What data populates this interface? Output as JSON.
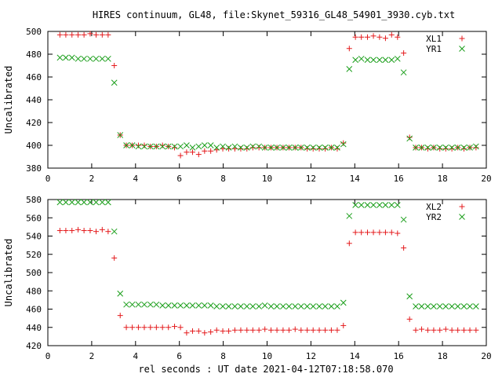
{
  "figure": {
    "title": "HIRES continuum, GL48, file:Skynet_59316_GL48_54901_3930.cyb.txt",
    "xlabel": "rel seconds : UT date 2021-04-12T07:18:58.070"
  },
  "chart_data": [
    {
      "type": "scatter",
      "title": "HIRES continuum, GL48, file:Skynet_59316_GL48_54901_3930.cyb.txt",
      "xlabel": "",
      "ylabel": "Uncalibrated",
      "xlim": [
        0,
        20
      ],
      "ylim": [
        380,
        500
      ],
      "xticks": [
        0,
        2,
        4,
        6,
        8,
        10,
        12,
        14,
        16,
        18,
        20
      ],
      "yticks": [
        380,
        400,
        420,
        440,
        460,
        480,
        500
      ],
      "grid": false,
      "legend_position": "top-right",
      "series": [
        {
          "name": "XL1",
          "marker": "plus",
          "color": "#e41a1c",
          "x": [
            0.55,
            0.82,
            1.1,
            1.38,
            1.65,
            1.93,
            2.2,
            2.48,
            2.75,
            3.03,
            3.3,
            3.58,
            3.85,
            4.13,
            4.4,
            4.68,
            4.95,
            5.23,
            5.5,
            5.78,
            6.05,
            6.33,
            6.6,
            6.88,
            7.15,
            7.43,
            7.7,
            7.98,
            8.25,
            8.53,
            8.8,
            9.08,
            9.35,
            9.63,
            9.9,
            10.18,
            10.45,
            10.73,
            11.0,
            11.28,
            11.55,
            11.83,
            12.1,
            12.38,
            12.65,
            12.93,
            13.2,
            13.48,
            13.75,
            14.03,
            14.3,
            14.58,
            14.85,
            15.13,
            15.4,
            15.68,
            15.95,
            16.23,
            16.5,
            16.78,
            17.05,
            17.33,
            17.6,
            17.88,
            18.15,
            18.43,
            18.7,
            18.98,
            19.25,
            19.53
          ],
          "y": [
            497,
            497,
            497,
            497,
            497,
            498,
            497,
            497,
            497,
            470,
            409,
            400,
            400,
            400,
            400,
            399,
            399,
            400,
            399,
            398,
            391,
            394,
            394,
            392,
            395,
            395,
            396,
            397,
            397,
            397,
            397,
            397,
            398,
            398,
            398,
            398,
            398,
            398,
            398,
            398,
            398,
            397,
            397,
            397,
            397,
            398,
            397,
            402,
            485,
            495,
            495,
            495,
            496,
            495,
            494,
            497,
            495,
            481,
            407,
            398,
            398,
            397,
            398,
            397,
            397,
            397,
            398,
            397,
            398,
            398
          ]
        },
        {
          "name": "YR1",
          "marker": "cross",
          "color": "#1a9e1a",
          "x": [
            0.55,
            0.82,
            1.1,
            1.38,
            1.65,
            1.93,
            2.2,
            2.48,
            2.75,
            3.03,
            3.3,
            3.58,
            3.85,
            4.13,
            4.4,
            4.68,
            4.95,
            5.23,
            5.5,
            5.78,
            6.05,
            6.33,
            6.6,
            6.88,
            7.15,
            7.43,
            7.7,
            7.98,
            8.25,
            8.53,
            8.8,
            9.08,
            9.35,
            9.63,
            9.9,
            10.18,
            10.45,
            10.73,
            11.0,
            11.28,
            11.55,
            11.83,
            12.1,
            12.38,
            12.65,
            12.93,
            13.2,
            13.48,
            13.75,
            14.03,
            14.3,
            14.58,
            14.85,
            15.13,
            15.4,
            15.68,
            15.95,
            16.23,
            16.5,
            16.78,
            17.05,
            17.33,
            17.6,
            17.88,
            18.15,
            18.43,
            18.7,
            18.98,
            19.25,
            19.53
          ],
          "y": [
            477,
            477,
            477,
            476,
            476,
            476,
            476,
            476,
            476,
            455,
            409,
            400,
            400,
            399,
            399,
            399,
            399,
            399,
            399,
            399,
            399,
            400,
            398,
            399,
            400,
            400,
            398,
            399,
            398,
            399,
            398,
            398,
            399,
            399,
            398,
            398,
            398,
            398,
            398,
            398,
            398,
            398,
            398,
            398,
            398,
            398,
            398,
            401,
            467,
            475,
            476,
            475,
            475,
            475,
            475,
            475,
            476,
            464,
            406,
            398,
            398,
            398,
            398,
            398,
            398,
            398,
            398,
            398,
            398,
            399
          ]
        }
      ]
    },
    {
      "type": "scatter",
      "title": "",
      "xlabel": "rel seconds : UT date 2021-04-12T07:18:58.070",
      "ylabel": "Uncalibrated",
      "xlim": [
        0,
        20
      ],
      "ylim": [
        420,
        580
      ],
      "xticks": [
        0,
        2,
        4,
        6,
        8,
        10,
        12,
        14,
        16,
        18,
        20
      ],
      "yticks": [
        420,
        440,
        460,
        480,
        500,
        520,
        540,
        560,
        580
      ],
      "grid": false,
      "legend_position": "top-right",
      "series": [
        {
          "name": "XL2",
          "marker": "plus",
          "color": "#e41a1c",
          "x": [
            0.55,
            0.82,
            1.1,
            1.38,
            1.65,
            1.93,
            2.2,
            2.48,
            2.75,
            3.03,
            3.3,
            3.58,
            3.85,
            4.13,
            4.4,
            4.68,
            4.95,
            5.23,
            5.5,
            5.78,
            6.05,
            6.33,
            6.6,
            6.88,
            7.15,
            7.43,
            7.7,
            7.98,
            8.25,
            8.53,
            8.8,
            9.08,
            9.35,
            9.63,
            9.9,
            10.18,
            10.45,
            10.73,
            11.0,
            11.28,
            11.55,
            11.83,
            12.1,
            12.38,
            12.65,
            12.93,
            13.2,
            13.48,
            13.75,
            14.03,
            14.3,
            14.58,
            14.85,
            15.13,
            15.4,
            15.68,
            15.95,
            16.23,
            16.5,
            16.78,
            17.05,
            17.33,
            17.6,
            17.88,
            18.15,
            18.43,
            18.7,
            18.98,
            19.25,
            19.53
          ],
          "y": [
            546,
            546,
            546,
            547,
            546,
            546,
            545,
            547,
            545,
            516,
            453,
            440,
            440,
            440,
            440,
            440,
            440,
            440,
            440,
            441,
            440,
            434,
            436,
            436,
            434,
            435,
            437,
            436,
            436,
            437,
            437,
            437,
            437,
            437,
            438,
            437,
            437,
            437,
            437,
            438,
            437,
            437,
            437,
            437,
            437,
            437,
            437,
            442,
            532,
            544,
            544,
            544,
            544,
            544,
            544,
            544,
            543,
            527,
            449,
            437,
            438,
            437,
            437,
            437,
            438,
            437,
            437,
            437,
            437,
            437
          ]
        },
        {
          "name": "YR2",
          "marker": "cross",
          "color": "#1a9e1a",
          "x": [
            0.55,
            0.82,
            1.1,
            1.38,
            1.65,
            1.93,
            2.2,
            2.48,
            2.75,
            3.03,
            3.3,
            3.58,
            3.85,
            4.13,
            4.4,
            4.68,
            4.95,
            5.23,
            5.5,
            5.78,
            6.05,
            6.33,
            6.6,
            6.88,
            7.15,
            7.43,
            7.7,
            7.98,
            8.25,
            8.53,
            8.8,
            9.08,
            9.35,
            9.63,
            9.9,
            10.18,
            10.45,
            10.73,
            11.0,
            11.28,
            11.55,
            11.83,
            12.1,
            12.38,
            12.65,
            12.93,
            13.2,
            13.48,
            13.75,
            14.03,
            14.3,
            14.58,
            14.85,
            15.13,
            15.4,
            15.68,
            15.95,
            16.23,
            16.5,
            16.78,
            17.05,
            17.33,
            17.6,
            17.88,
            18.15,
            18.43,
            18.7,
            18.98,
            19.25,
            19.53
          ],
          "y": [
            577,
            577,
            577,
            577,
            577,
            577,
            577,
            577,
            577,
            545,
            477,
            465,
            465,
            465,
            465,
            465,
            465,
            464,
            464,
            464,
            464,
            464,
            464,
            464,
            464,
            464,
            463,
            463,
            463,
            463,
            463,
            463,
            463,
            463,
            464,
            463,
            463,
            463,
            463,
            463,
            463,
            463,
            463,
            463,
            463,
            463,
            463,
            467,
            562,
            574,
            574,
            574,
            574,
            574,
            574,
            574,
            574,
            558,
            474,
            463,
            463,
            463,
            463,
            463,
            463,
            463,
            463,
            463,
            463,
            463
          ]
        }
      ]
    }
  ]
}
